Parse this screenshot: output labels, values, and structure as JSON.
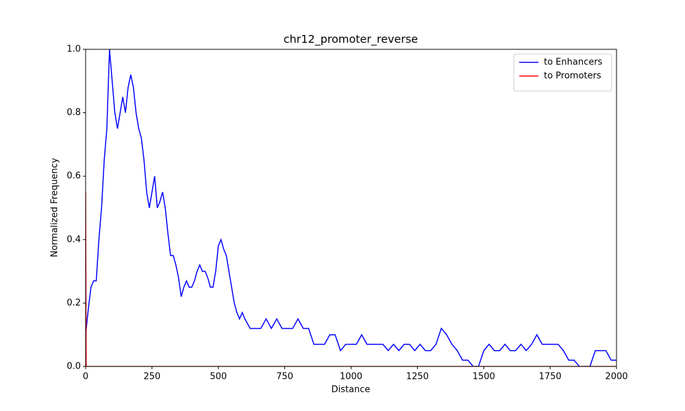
{
  "chart_data": {
    "type": "line",
    "title": "chr12_promoter_reverse",
    "xlabel": "Distance",
    "ylabel": "Normalized Frequency",
    "xlim": [
      0,
      2000
    ],
    "ylim": [
      0,
      1
    ],
    "xticks": [
      0,
      250,
      500,
      750,
      1000,
      1250,
      1500,
      1750,
      2000
    ],
    "yticks": [
      {
        "value": 0,
        "label": "0.0"
      },
      0.2,
      0.4,
      0.6,
      0.8,
      {
        "value": 1,
        "label": "1.0"
      }
    ],
    "legend": "upper right",
    "series": [
      {
        "name": "to Enhancers",
        "color": "#0000ff",
        "x": [
          0,
          10,
          20,
          30,
          40,
          50,
          60,
          70,
          80,
          90,
          100,
          110,
          120,
          130,
          140,
          150,
          160,
          170,
          180,
          190,
          200,
          210,
          220,
          230,
          240,
          250,
          260,
          270,
          280,
          290,
          300,
          310,
          320,
          330,
          340,
          350,
          360,
          370,
          380,
          390,
          400,
          410,
          420,
          430,
          440,
          450,
          460,
          470,
          480,
          490,
          500,
          510,
          520,
          530,
          540,
          550,
          560,
          570,
          580,
          590,
          600,
          620,
          640,
          660,
          680,
          700,
          720,
          740,
          760,
          780,
          800,
          820,
          840,
          860,
          880,
          900,
          920,
          940,
          960,
          980,
          1000,
          1020,
          1040,
          1060,
          1080,
          1100,
          1120,
          1140,
          1160,
          1180,
          1200,
          1220,
          1240,
          1260,
          1280,
          1300,
          1320,
          1340,
          1360,
          1380,
          1400,
          1420,
          1440,
          1460,
          1480,
          1500,
          1520,
          1540,
          1560,
          1580,
          1600,
          1620,
          1640,
          1660,
          1680,
          1700,
          1720,
          1740,
          1760,
          1780,
          1800,
          1820,
          1840,
          1860,
          1880,
          1900,
          1920,
          1940,
          1960,
          1980,
          2000
        ],
        "values": [
          0.1,
          0.18,
          0.25,
          0.27,
          0.27,
          0.4,
          0.5,
          0.65,
          0.75,
          1.0,
          0.9,
          0.8,
          0.75,
          0.8,
          0.85,
          0.8,
          0.88,
          0.92,
          0.88,
          0.8,
          0.75,
          0.72,
          0.65,
          0.55,
          0.5,
          0.55,
          0.6,
          0.5,
          0.52,
          0.55,
          0.5,
          0.42,
          0.35,
          0.35,
          0.32,
          0.28,
          0.22,
          0.25,
          0.27,
          0.25,
          0.25,
          0.27,
          0.3,
          0.32,
          0.3,
          0.3,
          0.28,
          0.25,
          0.25,
          0.3,
          0.38,
          0.4,
          0.37,
          0.35,
          0.3,
          0.25,
          0.2,
          0.17,
          0.15,
          0.17,
          0.15,
          0.12,
          0.12,
          0.12,
          0.15,
          0.12,
          0.15,
          0.12,
          0.12,
          0.12,
          0.15,
          0.12,
          0.12,
          0.07,
          0.07,
          0.07,
          0.1,
          0.1,
          0.05,
          0.07,
          0.07,
          0.07,
          0.1,
          0.07,
          0.07,
          0.07,
          0.07,
          0.05,
          0.07,
          0.05,
          0.07,
          0.07,
          0.05,
          0.07,
          0.05,
          0.05,
          0.07,
          0.12,
          0.1,
          0.07,
          0.05,
          0.02,
          0.02,
          0,
          0,
          0.05,
          0.07,
          0.05,
          0.05,
          0.07,
          0.05,
          0.05,
          0.07,
          0.05,
          0.07,
          0.1,
          0.07,
          0.07,
          0.07,
          0.07,
          0.05,
          0.02,
          0.02,
          0,
          0,
          0,
          0.05,
          0.05,
          0.05,
          0.02,
          0.02
        ]
      },
      {
        "name": "to Promoters",
        "color": "#ff0000",
        "x": [
          0,
          2,
          2000
        ],
        "values": [
          0.55,
          0,
          0
        ]
      }
    ]
  }
}
